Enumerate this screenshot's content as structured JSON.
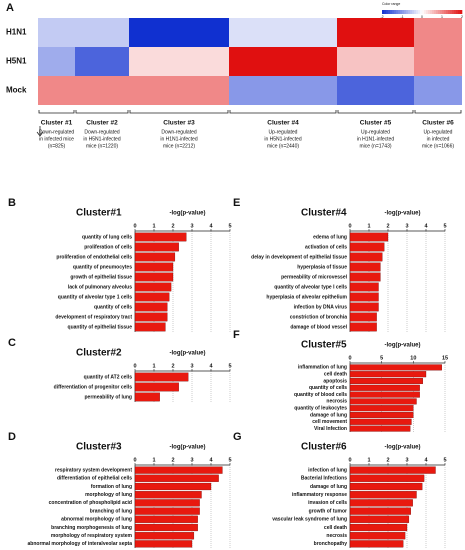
{
  "chart_data": [
    {
      "type": "heatmap",
      "panel": "A",
      "rows": [
        "H1N1",
        "H5N1",
        "Mock"
      ],
      "columns": [
        {
          "name": "Cluster #1",
          "lines": [
            "Down-regulated",
            "in infected mice",
            "(n=825)"
          ]
        },
        {
          "name": "Cluster #2",
          "lines": [
            "Down-regulated",
            "in H5N1-infected",
            "mice (n=1220)"
          ]
        },
        {
          "name": "Cluster #3",
          "lines": [
            "Down-regulated",
            "in H1N1-infected",
            "mice (n=2212)"
          ]
        },
        {
          "name": "Cluster #4",
          "lines": [
            "Up-regulated",
            "in H5N1-infected",
            "mice (n=2440)"
          ]
        },
        {
          "name": "Cluster #5",
          "lines": [
            "Up-regulated",
            "in H1N1-infected",
            "mice (n=1743)"
          ]
        },
        {
          "name": "Cluster #6",
          "lines": [
            "Up-regulated",
            "in infected",
            "mice (n=1066)"
          ]
        }
      ],
      "values": [
        [
          -0.5,
          -0.5,
          -2,
          -0.3,
          2,
          1
        ],
        [
          -0.8,
          -1.5,
          0.3,
          2,
          0.5,
          1
        ],
        [
          1,
          1,
          1,
          -1,
          -1.5,
          -1
        ]
      ],
      "color_label": "Color range",
      "clim": [
        -2,
        2
      ],
      "cticks": [
        -2,
        -1,
        0,
        1,
        2
      ],
      "colors": [
        "#1030d0",
        "#ffffff",
        "#e01010"
      ]
    },
    {
      "type": "barh",
      "panel": "B",
      "title": "Cluster#1",
      "xlabel": "-log(p-value)",
      "color": "#e8190f",
      "categories": [
        "quantity of lung cells",
        "proliferation of cells",
        "proliferation of endothelial cells",
        "quantity of pneumocytes",
        "growth of epithelial tissue",
        "lack of pulmonary alveolus",
        "quantity of alveolar type 1 cells",
        "quantity of cells",
        "development of respiratory tract",
        "quantity of epithelial tissue"
      ],
      "values": [
        2.7,
        2.3,
        2.1,
        2.0,
        2.0,
        1.9,
        1.8,
        1.7,
        1.7,
        1.6
      ],
      "xlim": [
        0,
        5
      ],
      "xticks": [
        0,
        1,
        2,
        3,
        4,
        5
      ],
      "grid": true
    },
    {
      "type": "barh",
      "panel": "C",
      "title": "Cluster#2",
      "xlabel": "-log(p-value)",
      "color": "#e8190f",
      "categories": [
        "quantity of AT2 cells",
        "differentiation of progenitor cells",
        "permeability of lung"
      ],
      "values": [
        2.8,
        2.3,
        1.3
      ],
      "xlim": [
        0,
        5
      ],
      "xticks": [
        0,
        1,
        2,
        3,
        4,
        5
      ],
      "grid": true
    },
    {
      "type": "barh",
      "panel": "D",
      "title": "Cluster#3",
      "xlabel": "-log(p-value)",
      "color": "#e8190f",
      "categories": [
        "respiratory system development",
        "differentiation of epithelial cells",
        "formation of lung",
        "morphology of lung",
        "concentration of phospholipid acid",
        "branching of lung",
        "abnormal morphology of lung",
        "branching morphogenesis of lung",
        "morphology of respiratory system",
        "abnormal morphology of interalveolar septa"
      ],
      "values": [
        4.6,
        4.4,
        4.0,
        3.5,
        3.4,
        3.4,
        3.3,
        3.3,
        3.1,
        3.0
      ],
      "xlim": [
        0,
        5
      ],
      "xticks": [
        0,
        1,
        2,
        3,
        4,
        5
      ],
      "grid": true
    },
    {
      "type": "barh",
      "panel": "E",
      "title": "Cluster#4",
      "xlabel": "-log(p-value)",
      "color": "#e8190f",
      "categories": [
        "edema of lung",
        "activation of cells",
        "delay in development of epithelial tissue",
        "hyperplasia of tissue",
        "permeability of microvessel",
        "quantity of alveolar type I cells",
        "hyperplasia of alveolar epithelium",
        "infection by DNA virus",
        "constriction of bronchia",
        "damage of blood vessel"
      ],
      "values": [
        2.0,
        1.8,
        1.7,
        1.6,
        1.6,
        1.5,
        1.5,
        1.5,
        1.4,
        1.4
      ],
      "xlim": [
        0,
        5
      ],
      "xticks": [
        0,
        1,
        2,
        3,
        4,
        5
      ],
      "grid": true
    },
    {
      "type": "barh",
      "panel": "F",
      "title": "Cluster#5",
      "xlabel": "-log(p-value)",
      "color": "#e8190f",
      "categories": [
        "inflammation of lung",
        "cell death",
        "apoptosis",
        "quantity of cells",
        "quantity of blood cells",
        "necrosis",
        "quantity of leukocytes",
        "damage of lung",
        "cell movement",
        "Viral Infection"
      ],
      "values": [
        14.5,
        12,
        11.5,
        11,
        11,
        10.5,
        10,
        10,
        9.7,
        9.5
      ],
      "xlim": [
        0,
        15
      ],
      "xticks": [
        0,
        5,
        10,
        15
      ],
      "grid": true
    },
    {
      "type": "barh",
      "panel": "G",
      "title": "Cluster#6",
      "xlabel": "-log(p-value)",
      "color": "#e8190f",
      "categories": [
        "infection of lung",
        "Bacterial Infections",
        "damage of lung",
        "inflammatory response",
        "invasion of cells",
        "growth of tumor",
        "vascular leak syndrome of lung",
        "cell death",
        "necrosis",
        "bronchopathy"
      ],
      "values": [
        4.5,
        3.9,
        3.8,
        3.5,
        3.3,
        3.2,
        3.1,
        3.0,
        2.9,
        2.8
      ],
      "xlim": [
        0,
        5
      ],
      "xticks": [
        0,
        1,
        2,
        3,
        4,
        5
      ],
      "grid": true
    }
  ]
}
